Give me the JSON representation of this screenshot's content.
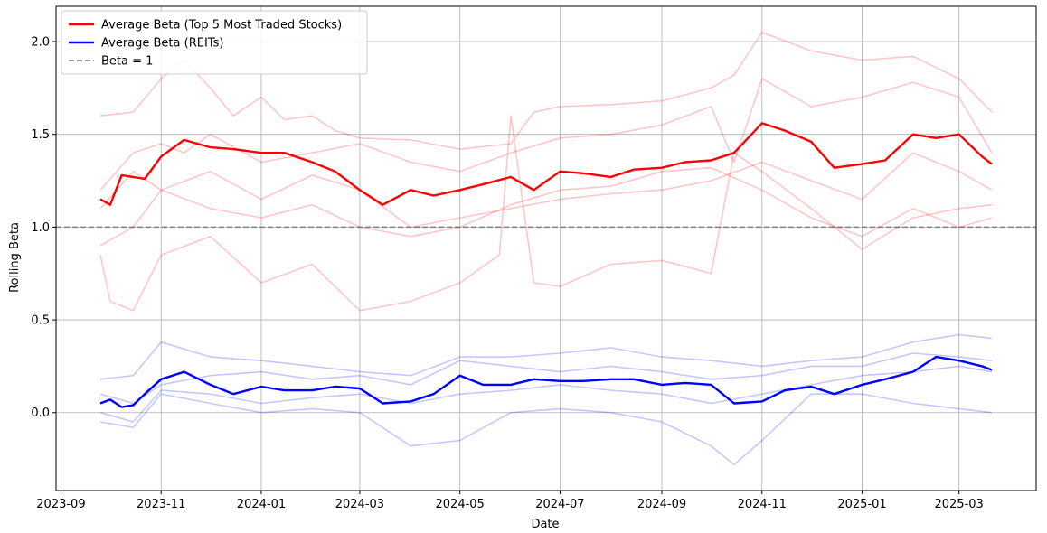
{
  "chart_data": {
    "type": "line",
    "title": "",
    "xlabel": "Date",
    "ylabel": "Rolling Beta",
    "x_tick_labels": [
      "2023-09",
      "2023-11",
      "2024-01",
      "2024-03",
      "2024-05",
      "2024-07",
      "2024-09",
      "2024-11",
      "2025-01",
      "2025-03"
    ],
    "x_tick_dates": [
      "2023-09-01",
      "2023-11-01",
      "2024-01-01",
      "2024-03-01",
      "2024-05-01",
      "2024-07-01",
      "2024-09-01",
      "2024-11-01",
      "2025-01-01",
      "2025-03-01"
    ],
    "xlim": [
      "2023-08-29",
      "2025-04-17"
    ],
    "y_ticks": [
      0.0,
      0.5,
      1.0,
      1.5,
      2.0
    ],
    "y_tick_labels": [
      "0.0",
      "0.5",
      "1.0",
      "1.5",
      "2.0"
    ],
    "ylim": [
      -0.42,
      2.19
    ],
    "grid": true,
    "legend_position": "top-left",
    "legend": [
      {
        "label": "Average Beta (Top 5 Most Traded Stocks)",
        "color": "#ff0000",
        "style": "solid"
      },
      {
        "label": "Average Beta (REITs)",
        "color": "#0000ff",
        "style": "solid"
      },
      {
        "label": "Beta = 1",
        "color": "#808080",
        "style": "dashed"
      }
    ],
    "reference_line": {
      "y": 1.0,
      "color": "#808080",
      "style": "dashed"
    },
    "series": [
      {
        "name": "Average Beta (Top 5 Most Traded Stocks)",
        "role": "average",
        "color": "#ff0000",
        "x": [
          "2023-09-25",
          "2023-10-01",
          "2023-10-08",
          "2023-10-15",
          "2023-10-22",
          "2023-11-01",
          "2023-11-15",
          "2023-12-01",
          "2023-12-15",
          "2024-01-01",
          "2024-01-15",
          "2024-02-01",
          "2024-02-15",
          "2024-03-01",
          "2024-03-15",
          "2024-04-01",
          "2024-04-15",
          "2024-05-01",
          "2024-05-15",
          "2024-06-01",
          "2024-06-15",
          "2024-07-01",
          "2024-07-15",
          "2024-08-01",
          "2024-08-15",
          "2024-09-01",
          "2024-09-15",
          "2024-10-01",
          "2024-10-15",
          "2024-11-01",
          "2024-11-15",
          "2024-12-01",
          "2024-12-15",
          "2025-01-01",
          "2025-01-15",
          "2025-02-01",
          "2025-02-15",
          "2025-03-01",
          "2025-03-15",
          "2025-03-21"
        ],
        "y": [
          1.15,
          1.12,
          1.28,
          1.27,
          1.26,
          1.38,
          1.47,
          1.43,
          1.42,
          1.4,
          1.4,
          1.35,
          1.3,
          1.2,
          1.12,
          1.2,
          1.17,
          1.2,
          1.23,
          1.27,
          1.2,
          1.3,
          1.29,
          1.27,
          1.31,
          1.32,
          1.35,
          1.36,
          1.4,
          1.56,
          1.52,
          1.46,
          1.32,
          1.34,
          1.36,
          1.5,
          1.48,
          1.5,
          1.38,
          1.34
        ]
      },
      {
        "name": "Average Beta (REITs)",
        "role": "average",
        "color": "#0000ff",
        "x": [
          "2023-09-25",
          "2023-10-01",
          "2023-10-08",
          "2023-10-15",
          "2023-10-22",
          "2023-11-01",
          "2023-11-15",
          "2023-12-01",
          "2023-12-15",
          "2024-01-01",
          "2024-01-15",
          "2024-02-01",
          "2024-02-15",
          "2024-03-01",
          "2024-03-15",
          "2024-04-01",
          "2024-04-15",
          "2024-05-01",
          "2024-05-15",
          "2024-06-01",
          "2024-06-15",
          "2024-07-01",
          "2024-07-15",
          "2024-08-01",
          "2024-08-15",
          "2024-09-01",
          "2024-09-15",
          "2024-10-01",
          "2024-10-15",
          "2024-11-01",
          "2024-11-15",
          "2024-12-01",
          "2024-12-15",
          "2025-01-01",
          "2025-01-15",
          "2025-02-01",
          "2025-02-15",
          "2025-03-01",
          "2025-03-15",
          "2025-03-21"
        ],
        "y": [
          0.05,
          0.07,
          0.03,
          0.04,
          0.1,
          0.18,
          0.22,
          0.15,
          0.1,
          0.14,
          0.12,
          0.12,
          0.14,
          0.13,
          0.05,
          0.06,
          0.1,
          0.2,
          0.15,
          0.15,
          0.18,
          0.17,
          0.17,
          0.18,
          0.18,
          0.15,
          0.16,
          0.15,
          0.05,
          0.06,
          0.12,
          0.14,
          0.1,
          0.15,
          0.18,
          0.22,
          0.3,
          0.28,
          0.25,
          0.23
        ]
      },
      {
        "name": "",
        "role": "individual",
        "color": "#ff0000",
        "x": [
          "2023-09-25",
          "2023-10-15",
          "2023-11-01",
          "2023-11-15",
          "2023-12-01",
          "2023-12-15",
          "2024-01-01",
          "2024-01-15",
          "2024-02-01",
          "2024-02-15",
          "2024-03-01",
          "2024-04-01",
          "2024-05-01",
          "2024-06-01",
          "2024-06-15",
          "2024-07-01",
          "2024-08-01",
          "2024-09-01",
          "2024-10-01",
          "2024-10-15",
          "2024-11-01",
          "2024-12-01",
          "2025-01-01",
          "2025-02-01",
          "2025-03-01",
          "2025-03-21"
        ],
        "y": [
          1.6,
          1.62,
          1.8,
          1.9,
          1.75,
          1.6,
          1.7,
          1.58,
          1.6,
          1.52,
          1.48,
          1.47,
          1.42,
          1.45,
          1.62,
          1.65,
          1.66,
          1.68,
          1.75,
          1.82,
          2.05,
          1.95,
          1.9,
          1.92,
          1.8,
          1.62
        ]
      },
      {
        "name": "",
        "role": "individual",
        "color": "#ff0000",
        "x": [
          "2023-09-25",
          "2023-10-15",
          "2023-11-01",
          "2023-11-15",
          "2023-12-01",
          "2024-01-01",
          "2024-02-01",
          "2024-03-01",
          "2024-04-01",
          "2024-05-01",
          "2024-06-01",
          "2024-07-01",
          "2024-08-01",
          "2024-09-01",
          "2024-10-01",
          "2024-10-15",
          "2024-11-01",
          "2024-12-01",
          "2025-01-01",
          "2025-02-01",
          "2025-03-01",
          "2025-03-21"
        ],
        "y": [
          1.2,
          1.4,
          1.45,
          1.4,
          1.5,
          1.35,
          1.4,
          1.45,
          1.35,
          1.3,
          1.4,
          1.48,
          1.5,
          1.55,
          1.65,
          1.35,
          1.8,
          1.65,
          1.7,
          1.78,
          1.7,
          1.4
        ]
      },
      {
        "name": "",
        "role": "individual",
        "color": "#ff0000",
        "x": [
          "2023-09-25",
          "2023-10-15",
          "2023-11-01",
          "2023-12-01",
          "2024-01-01",
          "2024-02-01",
          "2024-03-01",
          "2024-04-01",
          "2024-05-01",
          "2024-06-01",
          "2024-07-01",
          "2024-08-01",
          "2024-09-01",
          "2024-10-01",
          "2024-11-01",
          "2024-12-01",
          "2025-01-01",
          "2025-02-01",
          "2025-03-01",
          "2025-03-21"
        ],
        "y": [
          1.1,
          1.3,
          1.2,
          1.3,
          1.15,
          1.28,
          1.2,
          1.0,
          1.05,
          1.1,
          1.15,
          1.18,
          1.2,
          1.25,
          1.35,
          1.25,
          1.15,
          1.4,
          1.3,
          1.2
        ]
      },
      {
        "name": "",
        "role": "individual",
        "color": "#ff0000",
        "x": [
          "2023-09-25",
          "2023-10-15",
          "2023-11-01",
          "2023-12-01",
          "2024-01-01",
          "2024-02-01",
          "2024-03-01",
          "2024-04-01",
          "2024-05-01",
          "2024-06-01",
          "2024-07-01",
          "2024-08-01",
          "2024-09-01",
          "2024-10-01",
          "2024-11-01",
          "2024-12-01",
          "2025-01-01",
          "2025-02-01",
          "2025-03-01",
          "2025-03-21"
        ],
        "y": [
          0.9,
          1.0,
          1.2,
          1.1,
          1.05,
          1.12,
          1.0,
          0.95,
          1.0,
          1.12,
          1.2,
          1.22,
          1.3,
          1.32,
          1.2,
          1.05,
          0.95,
          1.1,
          1.0,
          1.05
        ]
      },
      {
        "name": "",
        "role": "individual",
        "color": "#ff0000",
        "x": [
          "2023-09-25",
          "2023-10-01",
          "2023-10-15",
          "2023-11-01",
          "2023-12-01",
          "2024-01-01",
          "2024-02-01",
          "2024-03-01",
          "2024-04-01",
          "2024-05-01",
          "2024-05-25",
          "2024-06-01",
          "2024-06-15",
          "2024-07-01",
          "2024-08-01",
          "2024-09-01",
          "2024-10-01",
          "2024-10-15",
          "2024-11-01",
          "2024-12-01",
          "2025-01-01",
          "2025-02-01",
          "2025-03-01",
          "2025-03-21"
        ],
        "y": [
          0.85,
          0.6,
          0.55,
          0.85,
          0.95,
          0.7,
          0.8,
          0.55,
          0.6,
          0.7,
          0.85,
          1.6,
          0.7,
          0.68,
          0.8,
          0.82,
          0.75,
          1.4,
          1.3,
          1.1,
          0.88,
          1.05,
          1.1,
          1.12
        ]
      },
      {
        "name": "",
        "role": "individual",
        "color": "#0000ff",
        "x": [
          "2023-09-25",
          "2023-10-15",
          "2023-11-01",
          "2023-12-01",
          "2024-01-01",
          "2024-02-01",
          "2024-03-01",
          "2024-04-01",
          "2024-05-01",
          "2024-06-01",
          "2024-07-01",
          "2024-08-01",
          "2024-09-01",
          "2024-10-01",
          "2024-11-01",
          "2024-12-01",
          "2025-01-01",
          "2025-02-01",
          "2025-03-01",
          "2025-03-21"
        ],
        "y": [
          0.18,
          0.2,
          0.38,
          0.3,
          0.28,
          0.25,
          0.22,
          0.2,
          0.3,
          0.3,
          0.32,
          0.35,
          0.3,
          0.28,
          0.25,
          0.28,
          0.3,
          0.38,
          0.42,
          0.4
        ]
      },
      {
        "name": "",
        "role": "individual",
        "color": "#0000ff",
        "x": [
          "2023-09-25",
          "2023-10-15",
          "2023-11-01",
          "2023-12-01",
          "2024-01-01",
          "2024-02-01",
          "2024-03-01",
          "2024-04-01",
          "2024-05-01",
          "2024-06-01",
          "2024-07-01",
          "2024-08-01",
          "2024-09-01",
          "2024-10-01",
          "2024-11-01",
          "2024-12-01",
          "2025-01-01",
          "2025-02-01",
          "2025-03-01",
          "2025-03-21"
        ],
        "y": [
          0.1,
          0.05,
          0.15,
          0.2,
          0.22,
          0.18,
          0.2,
          0.15,
          0.28,
          0.25,
          0.22,
          0.25,
          0.22,
          0.18,
          0.2,
          0.25,
          0.25,
          0.32,
          0.3,
          0.28
        ]
      },
      {
        "name": "",
        "role": "individual",
        "color": "#0000ff",
        "x": [
          "2023-09-25",
          "2023-10-15",
          "2023-11-01",
          "2023-12-01",
          "2024-01-01",
          "2024-02-01",
          "2024-03-01",
          "2024-04-01",
          "2024-05-01",
          "2024-06-01",
          "2024-07-01",
          "2024-08-01",
          "2024-09-01",
          "2024-10-01",
          "2024-11-01",
          "2024-12-01",
          "2025-01-01",
          "2025-02-01",
          "2025-03-01",
          "2025-03-21"
        ],
        "y": [
          0.0,
          -0.05,
          0.12,
          0.1,
          0.05,
          0.08,
          0.1,
          0.05,
          0.1,
          0.12,
          0.15,
          0.12,
          0.1,
          0.05,
          0.1,
          0.15,
          0.2,
          0.22,
          0.25,
          0.22
        ]
      },
      {
        "name": "",
        "role": "individual",
        "color": "#0000ff",
        "x": [
          "2023-09-25",
          "2023-10-15",
          "2023-11-01",
          "2023-12-01",
          "2024-01-01",
          "2024-02-01",
          "2024-03-01",
          "2024-04-01",
          "2024-05-01",
          "2024-06-01",
          "2024-07-01",
          "2024-08-01",
          "2024-09-01",
          "2024-10-01",
          "2024-10-15",
          "2024-11-01",
          "2024-12-01",
          "2025-01-01",
          "2025-02-01",
          "2025-03-01",
          "2025-03-21"
        ],
        "y": [
          -0.05,
          -0.08,
          0.1,
          0.05,
          0.0,
          0.02,
          0.0,
          -0.18,
          -0.15,
          0.0,
          0.02,
          0.0,
          -0.05,
          -0.18,
          -0.28,
          -0.15,
          0.1,
          0.1,
          0.05,
          0.02,
          0.0
        ]
      }
    ]
  }
}
